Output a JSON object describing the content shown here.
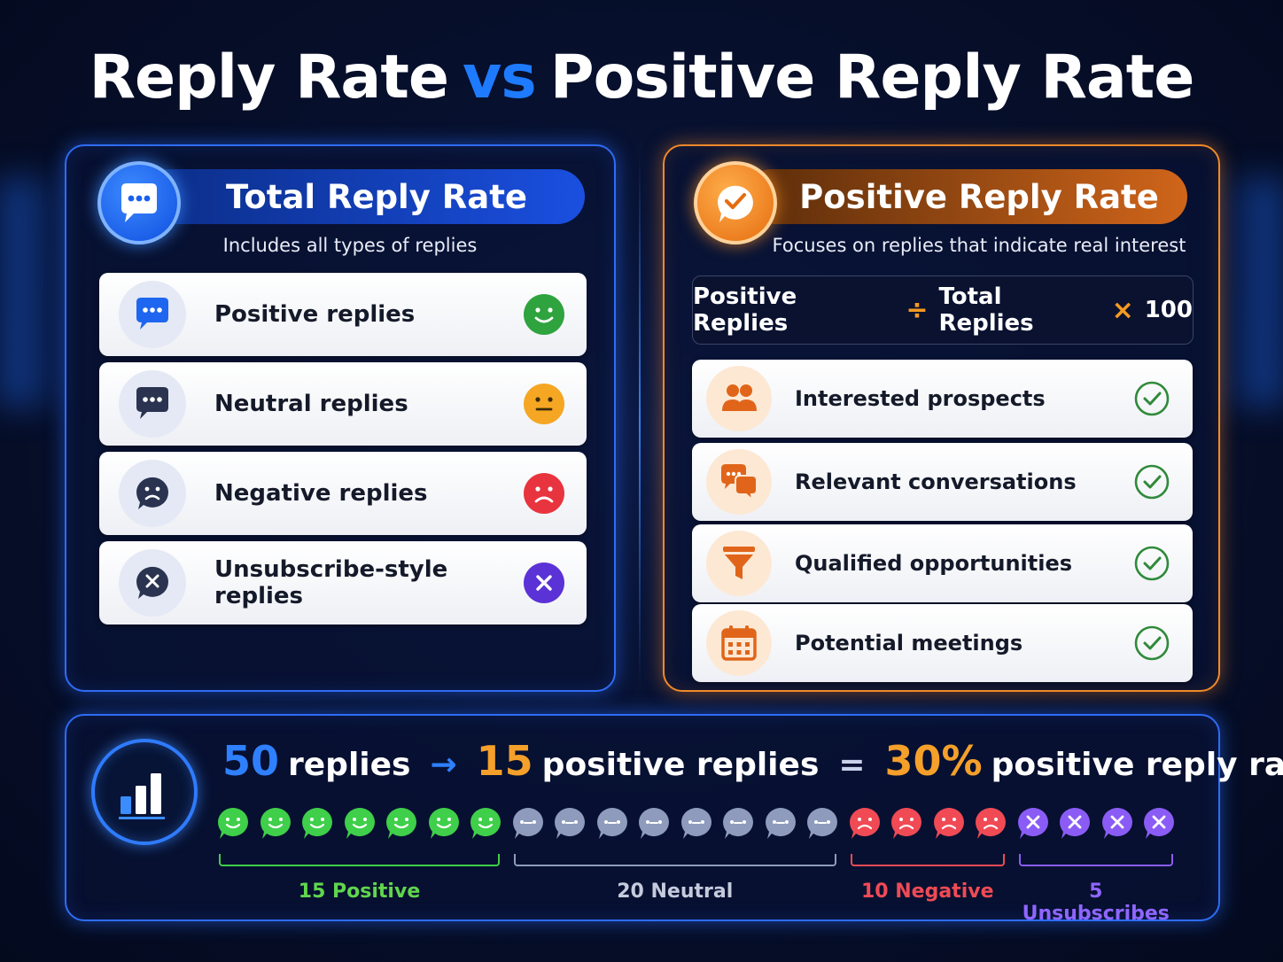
{
  "title": {
    "part1": "Reply Rate",
    "vs": "vs",
    "part2": "Positive Reply Rate"
  },
  "left_panel": {
    "heading": "Total Reply Rate",
    "subtitle": "Includes all types of replies",
    "icon": "chat-bubble-icon",
    "accent": "#2f6cf5",
    "rows": [
      {
        "label": "Positive replies",
        "icon": "chat-dots-icon",
        "status_icon": "smiley-icon",
        "color": "#2fa33e"
      },
      {
        "label": "Neutral replies",
        "icon": "chat-dots-icon",
        "status_icon": "neutral-face-icon",
        "color": "#f5a623"
      },
      {
        "label": "Negative replies",
        "icon": "sad-chat-icon",
        "status_icon": "sad-face-icon",
        "color": "#e8343e"
      },
      {
        "label": "Unsubscribe-style replies",
        "icon": "x-chat-icon",
        "status_icon": "x-circle-icon",
        "color": "#5b32d6"
      }
    ]
  },
  "right_panel": {
    "heading": "Positive Reply Rate",
    "subtitle": "Focuses on replies that indicate real interest",
    "icon": "check-bubble-icon",
    "accent": "#f08a2a",
    "formula": {
      "a": "Positive Replies",
      "op1": "÷",
      "b": "Total Replies",
      "op2": "×",
      "c": "100"
    },
    "rows": [
      {
        "label": "Interested prospects",
        "icon": "people-icon"
      },
      {
        "label": "Relevant conversations",
        "icon": "conversation-icon"
      },
      {
        "label": "Qualified opportunities",
        "icon": "funnel-icon"
      },
      {
        "label": "Potential meetings",
        "icon": "calendar-icon"
      }
    ]
  },
  "summary": {
    "icon": "bar-chart-icon",
    "total_num": "50",
    "total_txt": "replies",
    "arrow": "→",
    "pos_num": "15",
    "pos_txt": "positive replies",
    "equals": "=",
    "rate_num": "30%",
    "rate_txt": "positive reply rate",
    "groups": [
      {
        "label": "15 Positive",
        "count": 7,
        "color": "#3fcf4a"
      },
      {
        "label": "20 Neutral",
        "count": 8,
        "color": "#8e9bbd"
      },
      {
        "label": "10 Negative",
        "count": 4,
        "color": "#f04a55"
      },
      {
        "label": "5 Unsubscribes",
        "count": 4,
        "color": "#8a5cf5"
      }
    ],
    "label_colors": [
      "#5fd64d",
      "#c5cbdc",
      "#f04a55",
      "#8f66ff"
    ]
  }
}
